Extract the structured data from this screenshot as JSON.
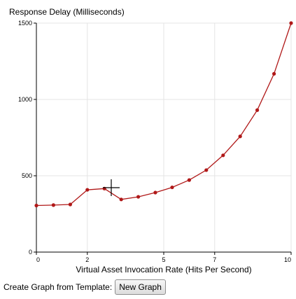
{
  "chart_data": {
    "type": "line",
    "title": "Response Delay (Milliseconds)",
    "xlabel": "Virtual Asset Invocation Rate (Hits Per Second)",
    "ylabel": "",
    "xlim": [
      0,
      10
    ],
    "ylim": [
      0,
      1500
    ],
    "xticks": [
      0,
      2,
      5,
      7,
      10
    ],
    "yticks": [
      0,
      500,
      1000,
      1500
    ],
    "grid": true,
    "series": [
      {
        "color": "#b01818",
        "x": [
          0,
          0.67,
          1.33,
          2.0,
          2.67,
          3.33,
          4.0,
          4.67,
          5.33,
          6.0,
          6.67,
          7.33,
          8.0,
          8.67,
          9.33,
          10.0
        ],
        "y": [
          305,
          308,
          312,
          408,
          416,
          345,
          362,
          390,
          424,
          472,
          537,
          634,
          758,
          930,
          1168,
          1500
        ]
      }
    ]
  },
  "footer": {
    "label": "Create Graph from Template:",
    "button_label": "New Graph"
  },
  "cursor": {
    "icon": "crosshair-icon"
  }
}
